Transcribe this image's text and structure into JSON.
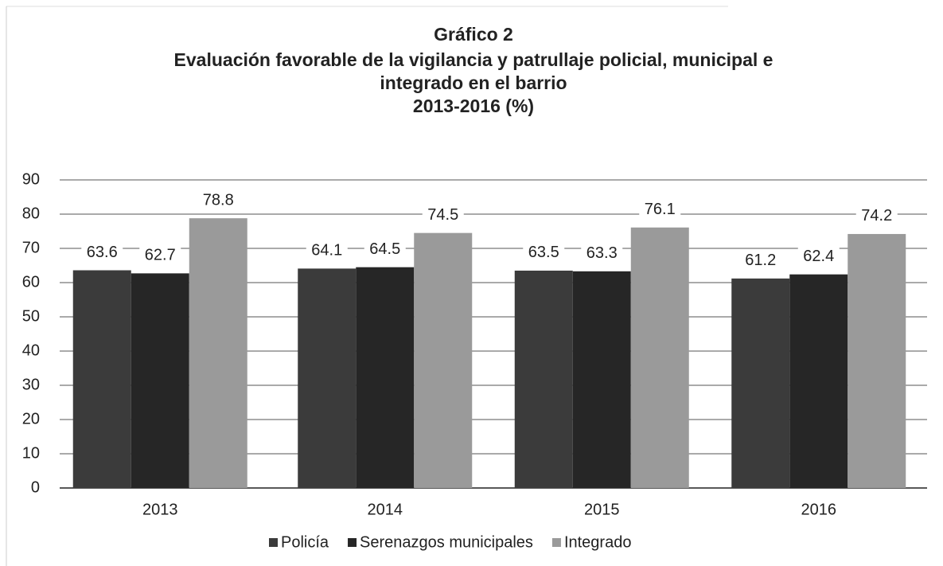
{
  "chart_data": {
    "type": "bar",
    "title": [
      "Gráfico 2",
      "Evaluación  favorable de la vigilancia y patrullaje policial, municipal e",
      "integrado en el barrio",
      "2013-2016 (%)"
    ],
    "categories": [
      "2013",
      "2014",
      "2015",
      "2016"
    ],
    "series": [
      {
        "name": "Policía",
        "color": "#3b3b3b",
        "values": [
          63.6,
          64.1,
          63.5,
          61.2
        ]
      },
      {
        "name": "Serenazgos municipales",
        "color": "#262626",
        "values": [
          62.7,
          64.5,
          63.3,
          62.4
        ]
      },
      {
        "name": "Integrado",
        "color": "#9a9a9a",
        "values": [
          78.8,
          74.5,
          76.1,
          74.2
        ]
      }
    ],
    "ylim": [
      0,
      90
    ],
    "yticks": [
      0,
      10,
      20,
      30,
      40,
      50,
      60,
      70,
      80,
      90
    ],
    "grid": true,
    "legend": "bottom"
  }
}
